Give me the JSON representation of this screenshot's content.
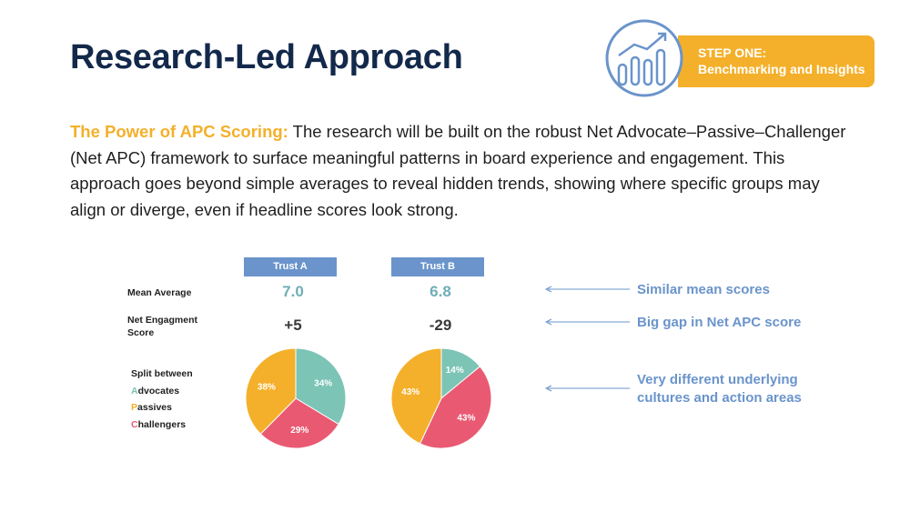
{
  "page": {
    "title": "Research-Led Approach",
    "step": {
      "line1": "STEP ONE:",
      "line2": "Benchmarking and Insights"
    },
    "intro_highlight": "The Power of APC Scoring:",
    "intro_text": " The research will be built on the robust Net Advocate–Passive–Challenger (Net APC) framework to surface meaningful patterns in board experience and engagement. This approach goes beyond simple averages to reveal hidden trends, showing where specific groups may align or diverge, even if headline scores look strong."
  },
  "table": {
    "row_mean": "Mean Average",
    "row_nes_1": "Net Engagment",
    "row_nes_2": "Score",
    "split_title": "Split between",
    "split_a_initial": "A",
    "split_a_rest": "dvocates",
    "split_p_initial": "P",
    "split_p_rest": "assives",
    "split_c_initial": "C",
    "split_c_rest": "hallengers"
  },
  "callouts": {
    "mean": "Similar mean scores",
    "nps": "Big gap in Net APC score",
    "split_1": "Very different underlying",
    "split_2": "cultures and action areas"
  },
  "colors": {
    "advocates": "#7cc4b6",
    "passives": "#f4b02a",
    "challengers": "#e95a72",
    "accent": "#6a94cb",
    "navy": "#13294b"
  },
  "chart_data": {
    "type": "pie",
    "trusts": [
      {
        "name": "Trust A",
        "mean": "7.0",
        "net_score": "+5",
        "slices": [
          {
            "name": "Advocates",
            "value": 34,
            "label": "34%"
          },
          {
            "name": "Challengers",
            "value": 29,
            "label": "29%"
          },
          {
            "name": "Passives",
            "value": 38,
            "label": "38%"
          }
        ]
      },
      {
        "name": "Trust B",
        "mean": "6.8",
        "net_score": "-29",
        "slices": [
          {
            "name": "Advocates",
            "value": 14,
            "label": "14%"
          },
          {
            "name": "Challengers",
            "value": 43,
            "label": "43%"
          },
          {
            "name": "Passives",
            "value": 43,
            "label": "43%"
          }
        ]
      }
    ]
  }
}
